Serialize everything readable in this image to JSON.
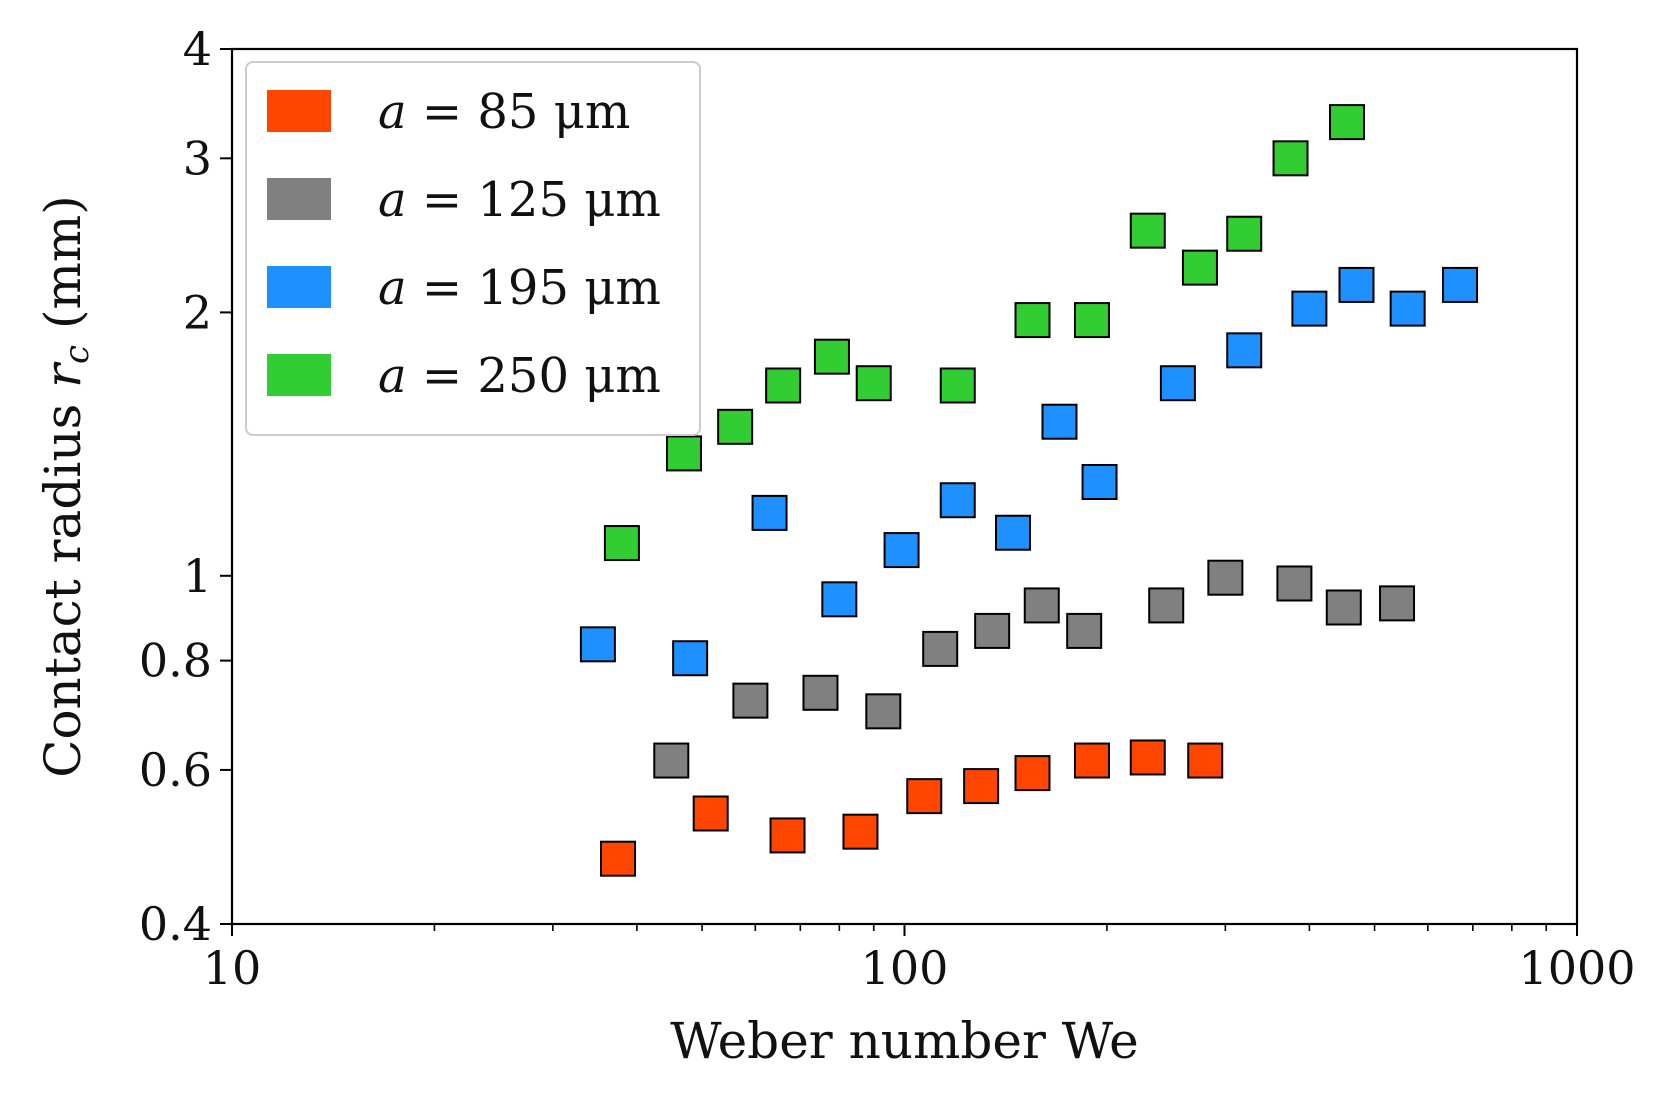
{
  "chart_data": {
    "type": "scatter",
    "xscale": "log",
    "yscale": "log",
    "xlim": [
      10,
      1000
    ],
    "ylim": [
      0.4,
      4
    ],
    "xlabel": "Weber number We",
    "ylabel": {
      "prefix": "Contact radius ",
      "symbol": "r",
      "subscript": "c",
      "suffix": " (mm)"
    },
    "xticks": [
      {
        "value": 10,
        "label": "10"
      },
      {
        "value": 100,
        "label": "100"
      },
      {
        "value": 1000,
        "label": "1000"
      }
    ],
    "xminor": [
      20,
      30,
      40,
      50,
      60,
      70,
      80,
      90,
      200,
      300,
      400,
      500,
      600,
      700,
      800,
      900
    ],
    "yticks": [
      {
        "value": 0.4,
        "label": "0.4"
      },
      {
        "value": 0.6,
        "label": "0.6"
      },
      {
        "value": 0.8,
        "label": "0.8"
      },
      {
        "value": 1,
        "label": "1"
      },
      {
        "value": 2,
        "label": "2"
      },
      {
        "value": 3,
        "label": "3"
      },
      {
        "value": 4,
        "label": "4"
      }
    ],
    "legend_position": "top-left",
    "series": [
      {
        "name": "a = 85 μm",
        "var": "a",
        "eq": " = 85 μm",
        "color": "#ff4500",
        "points": [
          [
            37.5,
            0.475
          ],
          [
            51.5,
            0.535
          ],
          [
            67,
            0.505
          ],
          [
            86,
            0.51
          ],
          [
            107,
            0.56
          ],
          [
            130,
            0.575
          ],
          [
            155,
            0.595
          ],
          [
            190,
            0.615
          ],
          [
            230,
            0.62
          ],
          [
            280,
            0.615
          ]
        ]
      },
      {
        "name": "a = 125 μm",
        "var": "a",
        "eq": " = 125 μm",
        "color": "#808080",
        "points": [
          [
            45,
            0.615
          ],
          [
            59,
            0.72
          ],
          [
            75,
            0.735
          ],
          [
            93,
            0.7
          ],
          [
            113,
            0.825
          ],
          [
            135,
            0.865
          ],
          [
            160,
            0.925
          ],
          [
            185,
            0.865
          ],
          [
            245,
            0.925
          ],
          [
            300,
            0.995
          ],
          [
            380,
            0.98
          ],
          [
            450,
            0.92
          ],
          [
            540,
            0.93
          ]
        ]
      },
      {
        "name": "a = 195 μm",
        "var": "a",
        "eq": " = 195 μm",
        "color": "#1e90ff",
        "points": [
          [
            35,
            0.835
          ],
          [
            48,
            0.805
          ],
          [
            63,
            1.18
          ],
          [
            80,
            0.94
          ],
          [
            99,
            1.07
          ],
          [
            120,
            1.22
          ],
          [
            145,
            1.12
          ],
          [
            170,
            1.5
          ],
          [
            195,
            1.28
          ],
          [
            255,
            1.66
          ],
          [
            320,
            1.81
          ],
          [
            400,
            2.02
          ],
          [
            470,
            2.15
          ],
          [
            560,
            2.02
          ],
          [
            670,
            2.15
          ]
        ]
      },
      {
        "name": "a = 250 μm",
        "var": "a",
        "eq": " = 250 μm",
        "color": "#32cd32",
        "points": [
          [
            38,
            1.09
          ],
          [
            47,
            1.38
          ],
          [
            56,
            1.48
          ],
          [
            66,
            1.65
          ],
          [
            78,
            1.78
          ],
          [
            90,
            1.66
          ],
          [
            120,
            1.65
          ],
          [
            155,
            1.96
          ],
          [
            190,
            1.96
          ],
          [
            230,
            2.48
          ],
          [
            275,
            2.25
          ],
          [
            320,
            2.46
          ],
          [
            375,
            3.0
          ],
          [
            455,
            3.3
          ]
        ]
      }
    ]
  }
}
